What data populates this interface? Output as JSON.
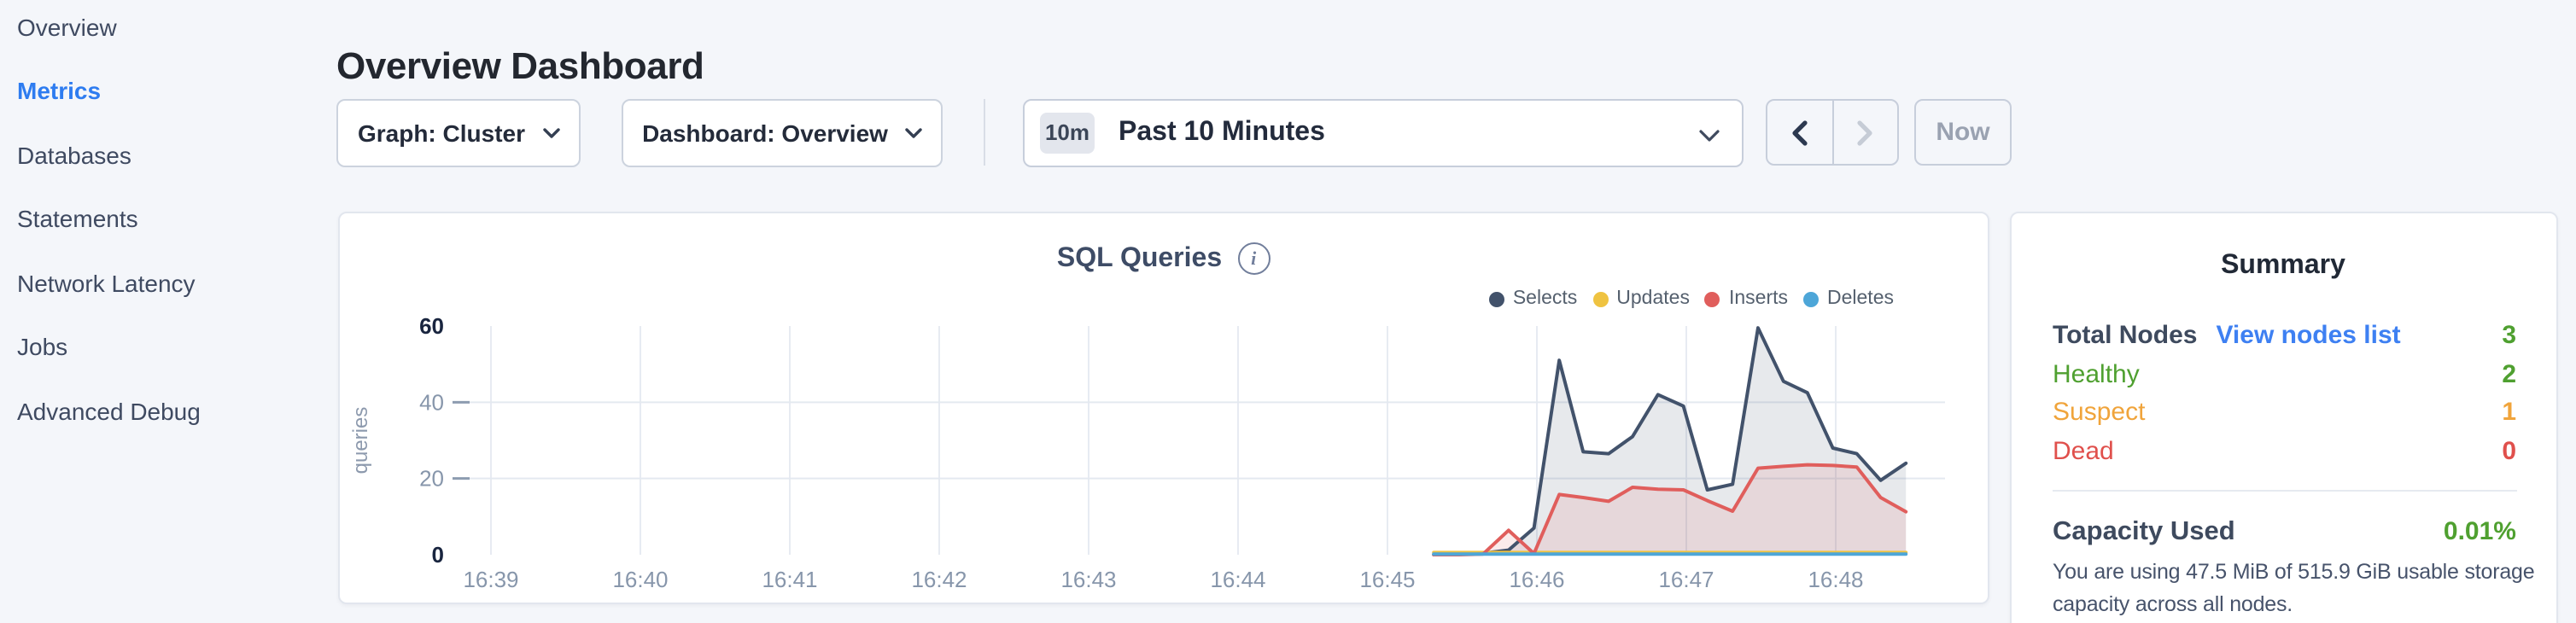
{
  "header": {
    "title": "Overview Dashboard"
  },
  "sidebar": {
    "items": [
      {
        "label": "Overview",
        "active": false
      },
      {
        "label": "Metrics",
        "active": true
      },
      {
        "label": "Databases",
        "active": false
      },
      {
        "label": "Statements",
        "active": false
      },
      {
        "label": "Network Latency",
        "active": false
      },
      {
        "label": "Jobs",
        "active": false
      },
      {
        "label": "Advanced Debug",
        "active": false
      }
    ]
  },
  "toolbar": {
    "graph_label": "Graph: Cluster",
    "dashboard_label": "Dashboard: Overview",
    "time_badge": "10m",
    "time_label": "Past 10 Minutes",
    "now_label": "Now"
  },
  "icons": {
    "info_glyph": "i"
  },
  "chart_data": {
    "type": "area",
    "title": "SQL Queries",
    "ylabel": "queries",
    "y_ticks": [
      0,
      20,
      40,
      60
    ],
    "ylim": [
      0,
      60
    ],
    "x_ticks": [
      "16:39",
      "16:40",
      "16:41",
      "16:42",
      "16:43",
      "16:44",
      "16:45",
      "16:46",
      "16:47",
      "16:48"
    ],
    "x_unit_note": "x = minutes after 16:39",
    "xlim": [
      -0.26,
      9.73
    ],
    "grid": {
      "horizontal_at": [
        20,
        40
      ],
      "vertical_at_each_tick": true
    },
    "legend_position": "top-right",
    "x": [
      6.31,
      6.48,
      6.64,
      6.81,
      6.98,
      7.15,
      7.31,
      7.48,
      7.64,
      7.81,
      7.98,
      8.14,
      8.31,
      8.48,
      8.65,
      8.81,
      8.98,
      9.14,
      9.3,
      9.47
    ],
    "series": [
      {
        "name": "Selects",
        "color": "#42526b",
        "fill_opacity": 0.13,
        "values": [
          0,
          0.2,
          0.4,
          1.2,
          7,
          51,
          27,
          26.5,
          31,
          42,
          39,
          17,
          18.5,
          59.5,
          45.5,
          42.5,
          28,
          26.5,
          19.5,
          24
        ]
      },
      {
        "name": "Updates",
        "color": "#efc341",
        "fill_opacity": 0,
        "values": [
          0.6,
          0.6,
          0.6,
          0.6,
          0.6,
          0.6,
          0.6,
          0.6,
          0.6,
          0.6,
          0.6,
          0.6,
          0.6,
          0.6,
          0.6,
          0.6,
          0.6,
          0.6,
          0.6,
          0.6
        ]
      },
      {
        "name": "Inserts",
        "color": "#e05e5c",
        "fill_opacity": 0.12,
        "values": [
          0,
          0,
          0.2,
          6.4,
          0.3,
          15.8,
          15,
          14,
          17.7,
          17.2,
          17,
          14.2,
          11.4,
          22.7,
          23.2,
          23.6,
          23.4,
          23,
          15,
          11.3
        ]
      },
      {
        "name": "Deletes",
        "color": "#4da6d8",
        "fill_opacity": 0,
        "values": [
          0.2,
          0.2,
          0.2,
          0.2,
          0.2,
          0.2,
          0.2,
          0.2,
          0.2,
          0.2,
          0.2,
          0.2,
          0.2,
          0.2,
          0.2,
          0.2,
          0.2,
          0.2,
          0.2,
          0.2
        ]
      }
    ]
  },
  "summary": {
    "heading": "Summary",
    "nodes": {
      "total_label": "Total Nodes",
      "link": "View nodes list",
      "total_value": "3",
      "rows": [
        {
          "label": "Healthy",
          "value": "2",
          "status": "healthy"
        },
        {
          "label": "Suspect",
          "value": "1",
          "status": "suspect"
        },
        {
          "label": "Dead",
          "value": "0",
          "status": "dead"
        }
      ]
    },
    "capacity": {
      "label": "Capacity Used",
      "value": "0.01%",
      "description_lines": [
        "You are using 47.5 MiB of 515.9 GiB usable storage",
        "capacity across all nodes."
      ]
    }
  },
  "colors": {
    "accent_blue": "#2e7cf0",
    "link_blue": "#3e80f2",
    "status": {
      "healthy": "#4fa030",
      "suspect": "#f0a43b",
      "dead": "#e0504c"
    },
    "total_value_green": "#4fa030",
    "capacity_green": "#4fa030",
    "axis_label_gray": "#8796ab",
    "axis_label_dark": "#19253f",
    "gridline": "#e7ebf2"
  }
}
